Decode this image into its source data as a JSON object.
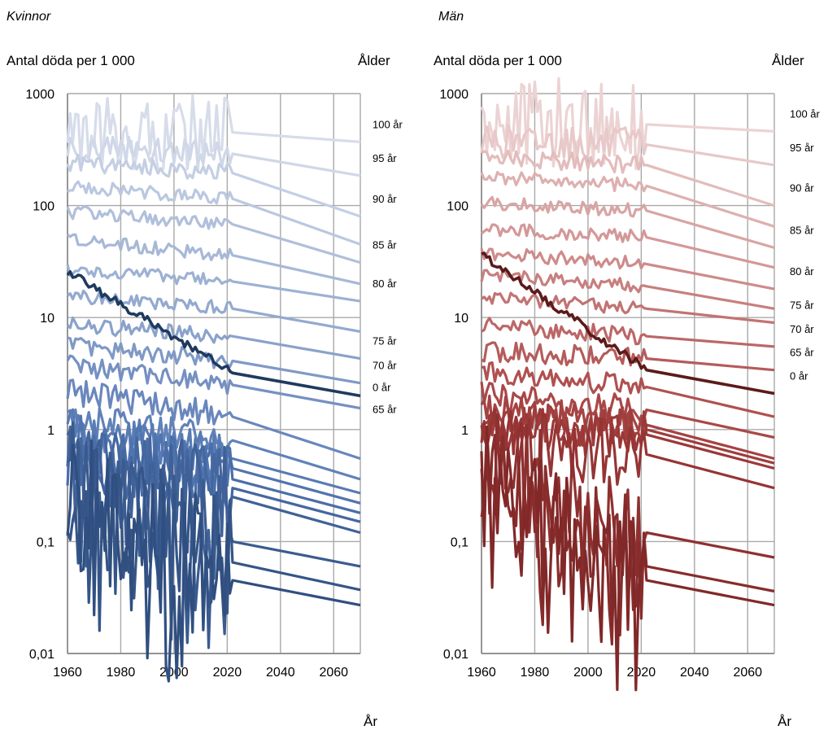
{
  "chart_data": [
    {
      "type": "line",
      "title": "Kvinnor",
      "ylabel": "Antal döda per 1 000",
      "xlabel": "År",
      "age_label": "Ålder",
      "yscale": "log",
      "ylim": [
        0.01,
        1000
      ],
      "xlim": [
        1960,
        2070
      ],
      "x_ticks": [
        "1960",
        "1980",
        "2000",
        "2020",
        "2040",
        "2060"
      ],
      "y_ticks": [
        "0,01",
        "0,1",
        "1",
        "10",
        "100",
        "1000"
      ],
      "grid": true,
      "highlight_color": "#1f3a5f",
      "series": [
        {
          "name": "100 år",
          "color": "#d6dcea",
          "start": 400,
          "y2022": 450,
          "end": 370,
          "label": true,
          "amp": 0.35
        },
        {
          "name": "95 år",
          "color": "#cfd7e8",
          "start": 340,
          "y2022": 290,
          "end": 185,
          "label": true,
          "amp": 0.12
        },
        {
          "name": "90 år",
          "color": "#c4cfe4",
          "start": 245,
          "y2022": 195,
          "end": 80,
          "label": true,
          "amp": 0.08
        },
        {
          "name": "",
          "color": "#bac8e0",
          "start": 150,
          "y2022": 115,
          "end": 45,
          "label": false,
          "amp": 0.06
        },
        {
          "name": "85 år",
          "color": "#b0bfdb",
          "start": 88,
          "y2022": 68,
          "end": 31,
          "label": true,
          "amp": 0.06
        },
        {
          "name": "",
          "color": "#a7b8d7",
          "start": 50,
          "y2022": 36,
          "end": 20,
          "label": false,
          "amp": 0.06
        },
        {
          "name": "80 år",
          "color": "#9db1d3",
          "start": 27,
          "y2022": 21,
          "end": 14,
          "label": true,
          "amp": 0.06
        },
        {
          "name": "",
          "color": "#93a9cf",
          "start": 15.5,
          "y2022": 12,
          "end": 7.5,
          "label": false,
          "amp": 0.06
        },
        {
          "name": "75 år",
          "color": "#8aa2cb",
          "start": 8.6,
          "y2022": 6.8,
          "end": 4.3,
          "label": true,
          "amp": 0.07
        },
        {
          "name": "70 år",
          "color": "#7f99c6",
          "start": 5.6,
          "y2022": 4.1,
          "end": 2.6,
          "label": true,
          "amp": 0.08
        },
        {
          "name": "65 år",
          "color": "#7590c2",
          "start": 3.8,
          "y2022": 2.5,
          "end": 1.55,
          "label": true,
          "amp": 0.09
        },
        {
          "name": "0 år",
          "color": "#1f3a5f",
          "start": 26,
          "y2022": 3.2,
          "end": 2.0,
          "label": true,
          "amp": 0.04,
          "highlight": true
        },
        {
          "name": "",
          "color": "#6a87bd",
          "start": 2.2,
          "y2022": 1.3,
          "end": 0.55,
          "label": false,
          "amp": 0.12
        },
        {
          "name": "",
          "color": "#6082b9",
          "start": 1.25,
          "y2022": 0.8,
          "end": 0.36,
          "label": false,
          "amp": 0.15
        },
        {
          "name": "",
          "color": "#587bb4",
          "start": 1.0,
          "y2022": 0.55,
          "end": 0.27,
          "label": false,
          "amp": 0.2
        },
        {
          "name": "",
          "color": "#5074ae",
          "start": 0.8,
          "y2022": 0.45,
          "end": 0.22,
          "label": false,
          "amp": 0.25
        },
        {
          "name": "",
          "color": "#4a6ea8",
          "start": 0.6,
          "y2022": 0.36,
          "end": 0.18,
          "label": false,
          "amp": 0.3
        },
        {
          "name": "",
          "color": "#4467a0",
          "start": 0.5,
          "y2022": 0.3,
          "end": 0.15,
          "label": false,
          "amp": 0.35
        },
        {
          "name": "",
          "color": "#3f6198",
          "start": 0.4,
          "y2022": 0.25,
          "end": 0.12,
          "label": false,
          "amp": 0.45
        },
        {
          "name": "",
          "color": "#3a5b90",
          "start": 0.35,
          "y2022": 0.1,
          "end": 0.06,
          "label": false,
          "amp": 0.55
        },
        {
          "name": "",
          "color": "#355588",
          "start": 0.3,
          "y2022": 0.065,
          "end": 0.037,
          "label": false,
          "amp": 0.6
        },
        {
          "name": "",
          "color": "#304f80",
          "start": 0.26,
          "y2022": 0.045,
          "end": 0.027,
          "label": false,
          "amp": 0.65
        }
      ]
    },
    {
      "type": "line",
      "title": "Män",
      "ylabel": "Antal döda per 1 000",
      "xlabel": "År",
      "age_label": "Ålder",
      "yscale": "log",
      "ylim": [
        0.01,
        1000
      ],
      "xlim": [
        1960,
        2070
      ],
      "x_ticks": [
        "1960",
        "1980",
        "2000",
        "2020",
        "2040",
        "2060"
      ],
      "y_ticks": [
        "0,01",
        "0,1",
        "1",
        "10",
        "100",
        "1000"
      ],
      "grid": true,
      "highlight_color": "#5c1a1a",
      "series": [
        {
          "name": "100 år",
          "color": "#ecd3d3",
          "start": 560,
          "y2022": 530,
          "end": 460,
          "label": true,
          "amp": 0.4
        },
        {
          "name": "95 år",
          "color": "#e8c8c8",
          "start": 380,
          "y2022": 350,
          "end": 230,
          "label": true,
          "amp": 0.15
        },
        {
          "name": "90 år",
          "color": "#e3bcbc",
          "start": 270,
          "y2022": 230,
          "end": 100,
          "label": true,
          "amp": 0.08
        },
        {
          "name": "",
          "color": "#deb0b0",
          "start": 180,
          "y2022": 150,
          "end": 65,
          "label": false,
          "amp": 0.06
        },
        {
          "name": "85 år",
          "color": "#d9a4a4",
          "start": 105,
          "y2022": 90,
          "end": 42,
          "label": true,
          "amp": 0.06
        },
        {
          "name": "",
          "color": "#d49898",
          "start": 62,
          "y2022": 52,
          "end": 28,
          "label": false,
          "amp": 0.06
        },
        {
          "name": "80 år",
          "color": "#ce8b8b",
          "start": 38,
          "y2022": 30,
          "end": 18,
          "label": true,
          "amp": 0.06
        },
        {
          "name": "",
          "color": "#c87f7f",
          "start": 24,
          "y2022": 19,
          "end": 12,
          "label": false,
          "amp": 0.06
        },
        {
          "name": "75 år",
          "color": "#c27373",
          "start": 15,
          "y2022": 12,
          "end": 9,
          "label": true,
          "amp": 0.06
        },
        {
          "name": "70 år",
          "color": "#bc6767",
          "start": 8.5,
          "y2022": 6.8,
          "end": 5.5,
          "label": true,
          "amp": 0.08
        },
        {
          "name": "65 år",
          "color": "#b55b5b",
          "start": 5.0,
          "y2022": 4.3,
          "end": 3.4,
          "label": true,
          "amp": 0.09
        },
        {
          "name": "0 år",
          "color": "#5c1a1a",
          "start": 36,
          "y2022": 3.4,
          "end": 2.1,
          "label": true,
          "amp": 0.04,
          "highlight": true
        },
        {
          "name": "",
          "color": "#b05050",
          "start": 3.2,
          "y2022": 2.4,
          "end": 1.3,
          "label": false,
          "amp": 0.1
        },
        {
          "name": "",
          "color": "#aa4848",
          "start": 2.1,
          "y2022": 1.5,
          "end": 0.85,
          "label": false,
          "amp": 0.12
        },
        {
          "name": "",
          "color": "#a54242",
          "start": 1.5,
          "y2022": 1.1,
          "end": 0.55,
          "label": false,
          "amp": 0.15
        },
        {
          "name": "",
          "color": "#a03d3d",
          "start": 1.2,
          "y2022": 1.0,
          "end": 0.5,
          "label": false,
          "amp": 0.18
        },
        {
          "name": "",
          "color": "#9b3838",
          "start": 1.0,
          "y2022": 0.9,
          "end": 0.45,
          "label": false,
          "amp": 0.2
        },
        {
          "name": "",
          "color": "#963434",
          "start": 0.8,
          "y2022": 0.6,
          "end": 0.3,
          "label": false,
          "amp": 0.3
        },
        {
          "name": "",
          "color": "#8f3030",
          "start": 0.6,
          "y2022": 0.12,
          "end": 0.072,
          "label": false,
          "amp": 0.5
        },
        {
          "name": "",
          "color": "#882c2c",
          "start": 0.45,
          "y2022": 0.06,
          "end": 0.036,
          "label": false,
          "amp": 0.55
        },
        {
          "name": "",
          "color": "#812828",
          "start": 0.3,
          "y2022": 0.045,
          "end": 0.027,
          "label": false,
          "amp": 0.6
        }
      ]
    }
  ]
}
